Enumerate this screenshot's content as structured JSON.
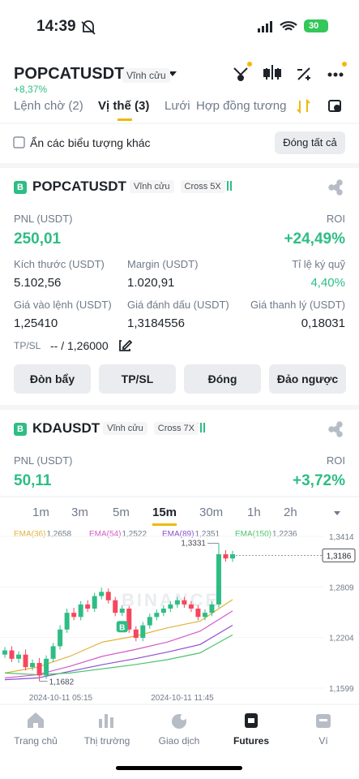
{
  "status": {
    "time": "14:39",
    "battery": "30"
  },
  "header": {
    "symbol": "POPCATUSDT",
    "badge": "Vĩnh cửu",
    "change": "+8,37%"
  },
  "tabs": {
    "items": [
      "Lệnh chờ (2)",
      "Vị thế (3)",
      "Lưới",
      "Hợp đồng tương"
    ],
    "active": 1
  },
  "filter": {
    "label": "Ẩn các biểu tượng khác",
    "button": "Đóng tất cả"
  },
  "positions": [
    {
      "side": "B",
      "symbol": "POPCATUSDT",
      "type": "Vĩnh cửu",
      "margin": "Cross 5X",
      "pnl_label": "PNL (USDT)",
      "pnl": "250,01",
      "roi_label": "ROI",
      "roi": "+24,49%",
      "fields": [
        {
          "label": "Kích thước (USDT)",
          "value": "5.102,56"
        },
        {
          "label": "Margin (USDT)",
          "value": "1.020,91"
        },
        {
          "label": "Tỉ lệ ký quỹ",
          "value": "4,40%"
        },
        {
          "label": "Giá vào lệnh (USDT)",
          "value": "1,25410"
        },
        {
          "label": "Giá đánh dấu (USDT)",
          "value": "1,3184556"
        },
        {
          "label": "Giá thanh lý (USDT)",
          "value": "0,18031"
        }
      ],
      "tpsl_label": "TP/SL",
      "tpsl": "-- / 1,26000",
      "buttons": [
        "Đòn bẩy",
        "TP/SL",
        "Đóng",
        "Đảo ngược"
      ]
    },
    {
      "side": "B",
      "symbol": "KDAUSDT",
      "type": "Vĩnh cửu",
      "margin": "Cross 7X",
      "pnl_label": "PNL (USDT)",
      "pnl": "50,11",
      "roi_label": "ROI",
      "roi": "+3,72%"
    }
  ],
  "intervals": {
    "items": [
      "1m",
      "3m",
      "5m",
      "15m",
      "30m",
      "1h",
      "2h"
    ],
    "active": 3
  },
  "chart": {
    "ema": [
      {
        "name": "EMA(36)",
        "value": "1,2658",
        "color": "#e0b33a",
        "values": [
          1.178,
          1.185,
          1.198,
          1.215,
          1.222,
          1.232,
          1.24,
          1.2658
        ]
      },
      {
        "name": "EMA(54)",
        "value": "1,2522",
        "color": "#d25bc8",
        "values": [
          1.172,
          1.176,
          1.186,
          1.198,
          1.206,
          1.215,
          1.228,
          1.2522
        ]
      },
      {
        "name": "EMA(89)",
        "value": "1,2351",
        "color": "#8a4fd0",
        "values": [
          1.17,
          1.172,
          1.18,
          1.188,
          1.195,
          1.203,
          1.212,
          1.2351
        ]
      },
      {
        "name": "EMA(150)",
        "value": "1,2236",
        "color": "#4cc36b",
        "values": [
          1.178,
          1.176,
          1.178,
          1.183,
          1.188,
          1.194,
          1.202,
          1.2236
        ]
      }
    ],
    "ylim": [
      1.1599,
      1.3414
    ],
    "yticks": [
      {
        "value": 1.3414,
        "label": "1,3414"
      },
      {
        "value": 1.2809,
        "label": "1,2809"
      },
      {
        "value": 1.2204,
        "label": "1,2204"
      },
      {
        "value": 1.1599,
        "label": "1,1599"
      }
    ],
    "last": {
      "value": 1.3186,
      "label": "1,3186"
    },
    "high": {
      "value": 1.3331,
      "label": "1,3331"
    },
    "low": {
      "value": 1.1682,
      "label": "1,1682"
    },
    "dates": [
      "2024-10-11 05:15",
      "2024-10-11 11:45"
    ],
    "watermark": "BINANCE",
    "buy_marker": "B",
    "candles": {
      "open": [
        1.2,
        1.205,
        1.195,
        1.2,
        1.185,
        1.19,
        1.175,
        1.195,
        1.21,
        1.23,
        1.25,
        1.245,
        1.26,
        1.255,
        1.27,
        1.275,
        1.265,
        1.25,
        1.255,
        1.23,
        1.22,
        1.235,
        1.245,
        1.25,
        1.255,
        1.26,
        1.265,
        1.26,
        1.255,
        1.245,
        1.25,
        1.26,
        1.32,
        1.315
      ],
      "high": [
        1.209,
        1.21,
        1.204,
        1.206,
        1.194,
        1.196,
        1.199,
        1.214,
        1.235,
        1.255,
        1.256,
        1.264,
        1.265,
        1.274,
        1.28,
        1.279,
        1.269,
        1.259,
        1.258,
        1.234,
        1.239,
        1.249,
        1.254,
        1.259,
        1.264,
        1.269,
        1.269,
        1.264,
        1.259,
        1.254,
        1.264,
        1.3331,
        1.325,
        1.324
      ],
      "low": [
        1.196,
        1.191,
        1.19,
        1.181,
        1.181,
        1.1682,
        1.171,
        1.191,
        1.206,
        1.226,
        1.241,
        1.241,
        1.251,
        1.251,
        1.266,
        1.261,
        1.246,
        1.246,
        1.226,
        1.216,
        1.216,
        1.231,
        1.241,
        1.246,
        1.251,
        1.256,
        1.256,
        1.251,
        1.241,
        1.241,
        1.246,
        1.256,
        1.311,
        1.311
      ],
      "close": [
        1.205,
        1.195,
        1.2,
        1.185,
        1.19,
        1.175,
        1.195,
        1.21,
        1.23,
        1.25,
        1.245,
        1.26,
        1.255,
        1.27,
        1.275,
        1.265,
        1.25,
        1.255,
        1.23,
        1.22,
        1.235,
        1.245,
        1.25,
        1.255,
        1.26,
        1.265,
        1.26,
        1.255,
        1.245,
        1.25,
        1.26,
        1.32,
        1.315,
        1.32
      ]
    }
  },
  "nav": {
    "items": [
      "Trang chủ",
      "Thị trường",
      "Giao dịch",
      "Futures",
      "Ví"
    ],
    "active": 3
  }
}
